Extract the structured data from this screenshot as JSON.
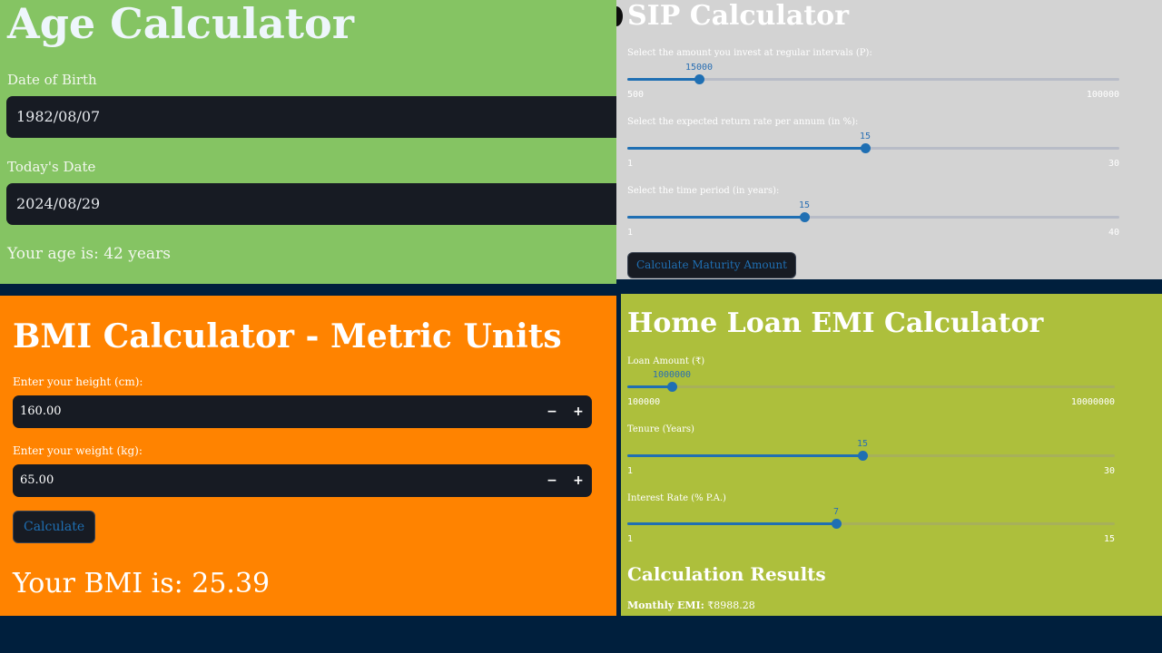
{
  "age": {
    "title": "Age Calculator",
    "dob_label": "Date of Birth",
    "dob_value": "1982/08/07",
    "today_label": "Today's Date",
    "today_value": "2024/08/29",
    "result": "Your age is: 42 years"
  },
  "sip": {
    "title": "SIP Calculator",
    "sliders": [
      {
        "label": "Select the amount you invest at regular intervals (P):",
        "value": "15000",
        "min": "500",
        "max": "100000",
        "fraction": 0.146
      },
      {
        "label": "Select the expected return rate per annum (in %):",
        "value": "15",
        "min": "1",
        "max": "30",
        "fraction": 0.483
      },
      {
        "label": "Select the time period (in years):",
        "value": "15",
        "min": "1",
        "max": "40",
        "fraction": 0.359
      }
    ],
    "button": "Calculate Maturity Amount"
  },
  "bmi": {
    "title": "BMI Calculator - Metric Units",
    "height_label": "Enter your height (cm):",
    "height_value": "160.00",
    "weight_label": "Enter your weight (kg):",
    "weight_value": "65.00",
    "minus": "−",
    "plus": "+",
    "button": "Calculate",
    "result": "Your BMI is: 25.39"
  },
  "loan": {
    "title": "Home Loan EMI Calculator",
    "sliders": [
      {
        "label": "Loan Amount (₹)",
        "value": "1000000",
        "min": "100000",
        "max": "10000000",
        "fraction": 0.091
      },
      {
        "label": "Tenure (Years)",
        "value": "15",
        "min": "1",
        "max": "30",
        "fraction": 0.483
      },
      {
        "label": "Interest Rate (% P.A.)",
        "value": "7",
        "min": "1",
        "max": "15",
        "fraction": 0.429
      }
    ],
    "results_heading": "Calculation Results",
    "emi_label": "Monthly EMI:",
    "emi_value": "₹8988.28"
  },
  "colors": {
    "slider_accent": "#1f6fb3",
    "input_bg": "#171b23",
    "page_bg": "#001f3d"
  }
}
